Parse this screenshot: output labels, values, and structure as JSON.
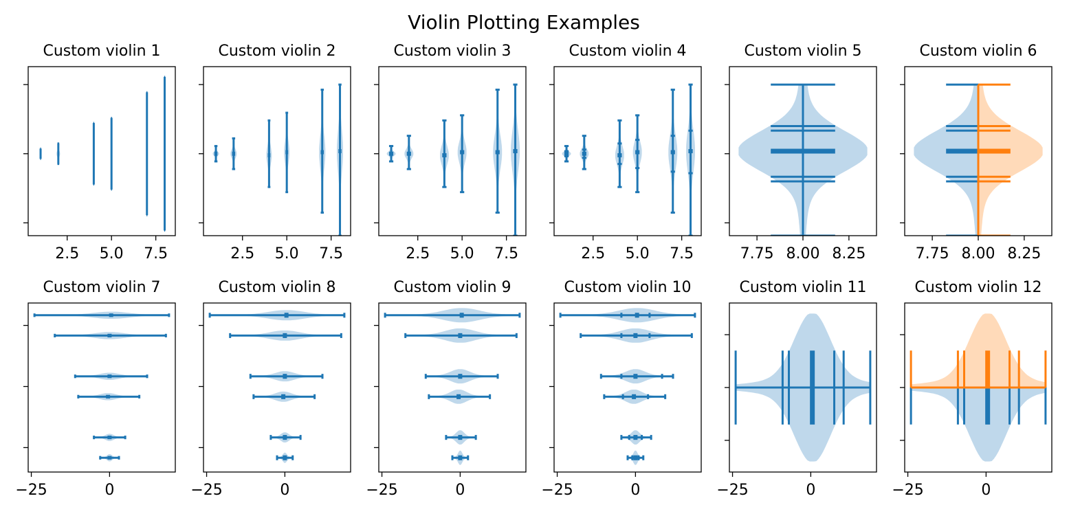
{
  "figure_title": "Violin Plotting Examples",
  "colors": {
    "blue": "#1f77b4",
    "blue_fill": "#bcd6ea",
    "orange": "#ff7f0e",
    "orange_fill": "#ffd8b5"
  },
  "chart_data": [
    {
      "title": "Custom violin 1",
      "type": "violin",
      "orientation": "vertical",
      "positions": [
        1,
        2,
        4,
        5,
        7,
        8
      ],
      "series": [
        {
          "min": -1,
          "max": 1,
          "median": 0,
          "mean": 0,
          "width": 0.1
        },
        {
          "min": -2,
          "max": 2,
          "median": 0,
          "mean": 0,
          "width": 0.2
        },
        {
          "min": -6,
          "max": 6,
          "median": 0,
          "mean": 0,
          "width": 0.1
        },
        {
          "min": -7,
          "max": 7,
          "median": 0,
          "mean": 0,
          "width": 0.1
        },
        {
          "min": -12,
          "max": 12,
          "median": 0,
          "mean": 0,
          "width": 0.1
        },
        {
          "min": -15,
          "max": 15,
          "median": 0,
          "mean": 0,
          "width": 0.1
        }
      ],
      "xlim": [
        0.3,
        8.6
      ],
      "ylim": [
        -16,
        17
      ],
      "xticks": [
        2.5,
        5.0,
        7.5
      ],
      "xticklabels": [
        "2.5",
        "5.0",
        "7.5"
      ],
      "yticks": [
        -13.5,
        0,
        13.5
      ],
      "show_extrema": true,
      "show_means": false,
      "show_medians": false
    },
    {
      "title": "Custom violin 2",
      "type": "violin",
      "orientation": "vertical",
      "positions": [
        1,
        2,
        4,
        5,
        7,
        8
      ],
      "series": [
        {
          "min": -1.5,
          "max": 1.5,
          "median": 0,
          "mean": 0,
          "width": 0.35
        },
        {
          "min": -3,
          "max": 3,
          "median": 0,
          "mean": 0,
          "width": 0.35
        },
        {
          "min": -6.5,
          "max": 6.5,
          "median": -0.3,
          "mean": -0.3,
          "width": 0.3
        },
        {
          "min": -7.5,
          "max": 8,
          "median": 0.3,
          "mean": 0.3,
          "width": 0.3
        },
        {
          "min": -11.5,
          "max": 12.5,
          "median": 0.3,
          "mean": 0.3,
          "width": 0.35
        },
        {
          "min": -16,
          "max": 13.5,
          "median": 0.5,
          "mean": 0.5,
          "width": 0.35
        }
      ],
      "xlim": [
        0.3,
        8.6
      ],
      "ylim": [
        -16,
        17
      ],
      "xticks": [
        2.5,
        5.0,
        7.5
      ],
      "xticklabels": [
        "2.5",
        "5.0",
        "7.5"
      ],
      "yticks": [
        -13.5,
        0,
        13.5
      ],
      "show_extrema": true,
      "show_means": true,
      "show_medians": false
    },
    {
      "title": "Custom violin 3",
      "type": "violin",
      "orientation": "vertical",
      "positions": [
        1,
        2,
        4,
        5,
        7,
        8
      ],
      "series": [
        {
          "min": -1.5,
          "max": 1.5,
          "median": 0,
          "mean": 0,
          "width": 0.5
        },
        {
          "min": -3,
          "max": 3.5,
          "median": 0,
          "mean": 0,
          "width": 0.5
        },
        {
          "min": -6.5,
          "max": 6.5,
          "median": -0.3,
          "mean": -0.3,
          "width": 0.5
        },
        {
          "min": -7.5,
          "max": 7.5,
          "median": 0.3,
          "mean": 0.3,
          "width": 0.5
        },
        {
          "min": -11.5,
          "max": 12.5,
          "median": 0.3,
          "mean": 0.3,
          "width": 0.5
        },
        {
          "min": -16,
          "max": 13.5,
          "median": 0.5,
          "mean": 0.5,
          "width": 0.5
        }
      ],
      "xlim": [
        0.3,
        8.6
      ],
      "ylim": [
        -16,
        17
      ],
      "xticks": [
        2.5,
        5.0,
        7.5
      ],
      "xticklabels": [
        "2.5",
        "5.0",
        "7.5"
      ],
      "yticks": [
        -13.5,
        0,
        13.5
      ],
      "show_extrema": true,
      "show_means": true,
      "show_medians": false
    },
    {
      "title": "Custom violin 4",
      "type": "violin",
      "orientation": "vertical",
      "positions": [
        1,
        2,
        4,
        5,
        7,
        8
      ],
      "series": [
        {
          "min": -1.5,
          "max": 1.5,
          "median": 0,
          "mean": 0,
          "q1": -0.5,
          "q3": 0.5,
          "width": 0.5
        },
        {
          "min": -3,
          "max": 3.5,
          "median": 0,
          "mean": 0,
          "q1": -0.8,
          "q3": 0.8,
          "width": 0.5
        },
        {
          "min": -6.5,
          "max": 6.5,
          "median": -0.3,
          "mean": -0.3,
          "q1": -2,
          "q3": 2,
          "width": 0.5
        },
        {
          "min": -7.5,
          "max": 7.5,
          "median": 0.3,
          "mean": 0.3,
          "q1": -2.8,
          "q3": 2.7,
          "width": 0.5
        },
        {
          "min": -11.5,
          "max": 12.5,
          "median": 0.3,
          "mean": 0.3,
          "q1": -3.5,
          "q3": 3.5,
          "width": 0.5
        },
        {
          "min": -16,
          "max": 13.5,
          "median": 0.5,
          "mean": 0.5,
          "q1": -3.8,
          "q3": 4.5,
          "width": 0.5
        }
      ],
      "xlim": [
        0.3,
        8.6
      ],
      "ylim": [
        -16,
        17
      ],
      "xticks": [
        2.5,
        5.0,
        7.5
      ],
      "xticklabels": [
        "2.5",
        "5.0",
        "7.5"
      ],
      "yticks": [
        -13.5,
        0,
        13.5
      ],
      "show_extrema": true,
      "show_means": true,
      "show_medians": false
    },
    {
      "title": "Custom violin 5",
      "type": "violin",
      "orientation": "vertical",
      "positions": [
        8
      ],
      "series": [
        {
          "min": -16,
          "max": 13.5,
          "mean": 0.5,
          "quantiles": [
            -5.4,
            -4.5,
            4.5,
            5.4
          ],
          "width": 0.7
        }
      ],
      "xlim": [
        7.6,
        8.4
      ],
      "ylim": [
        -16,
        17
      ],
      "xticks": [
        7.75,
        8.0,
        8.25
      ],
      "xticklabels": [
        "7.75",
        "8.00",
        "8.25"
      ],
      "yticks": [
        -13.5,
        0,
        13.5
      ],
      "show_extrema": true,
      "show_means": true,
      "show_medians": false
    },
    {
      "title": "Custom violin 6",
      "type": "violin",
      "orientation": "vertical",
      "split": true,
      "positions": [
        8
      ],
      "series": [
        {
          "name": "",
          "side": "low",
          "min": -16,
          "max": 13.5,
          "mean": 0.5,
          "quantiles": [
            -5.4,
            -4.5,
            4.5,
            5.4
          ],
          "width": 0.7
        },
        {
          "name": "",
          "side": "high",
          "min": -16,
          "max": 13.5,
          "mean": 0.5,
          "quantiles": [
            -5.4,
            -4.5,
            4.5,
            5.4
          ],
          "width": 0.7
        }
      ],
      "xlim": [
        7.6,
        8.4
      ],
      "ylim": [
        -16,
        17
      ],
      "xticks": [
        7.75,
        8.0,
        8.25
      ],
      "xticklabels": [
        "7.75",
        "8.00",
        "8.25"
      ],
      "yticks": [
        -13.5,
        0,
        13.5
      ],
      "show_extrema": true,
      "show_means": true,
      "show_medians": false
    },
    {
      "title": "Custom violin 7",
      "type": "violin",
      "orientation": "horizontal",
      "positions": [
        1,
        2,
        4,
        5,
        7,
        8
      ],
      "series": [
        {
          "min": -3,
          "max": 3,
          "median": 0,
          "mean": 0,
          "width": 0.35
        },
        {
          "min": -5,
          "max": 5,
          "median": 0,
          "mean": 0,
          "width": 0.35
        },
        {
          "min": -10,
          "max": 9.5,
          "median": -0.5,
          "mean": -0.5,
          "width": 0.35
        },
        {
          "min": -11,
          "max": 12,
          "median": 0,
          "mean": 0,
          "width": 0.35
        },
        {
          "min": -17.5,
          "max": 18,
          "median": 0,
          "mean": 0,
          "width": 0.35
        },
        {
          "min": -24,
          "max": 19,
          "median": 0.5,
          "mean": 0.5,
          "width": 0.35
        }
      ],
      "xlim": [
        -26,
        21
      ],
      "ylim": [
        0.3,
        8.6
      ],
      "xticks": [
        -25,
        0
      ],
      "xticklabels": [
        "−25",
        "0"
      ],
      "yticks": [
        1.5,
        4.5,
        7.5
      ],
      "show_extrema": true,
      "show_means": true,
      "show_medians": false
    },
    {
      "title": "Custom violin 8",
      "type": "violin",
      "orientation": "horizontal",
      "positions": [
        1,
        2,
        4,
        5,
        7,
        8
      ],
      "series": [
        {
          "min": -2.5,
          "max": 2.5,
          "median": 0,
          "mean": 0,
          "width": 0.5
        },
        {
          "min": -4.5,
          "max": 5,
          "median": 0,
          "mean": 0,
          "width": 0.5
        },
        {
          "min": -10,
          "max": 9.5,
          "median": -0.5,
          "mean": -0.5,
          "width": 0.5
        },
        {
          "min": -11,
          "max": 12,
          "median": 0,
          "mean": 0,
          "width": 0.5
        },
        {
          "min": -17.5,
          "max": 18,
          "median": 0,
          "mean": 0,
          "width": 0.5
        },
        {
          "min": -24,
          "max": 19,
          "median": 0.5,
          "mean": 0.5,
          "width": 0.5
        }
      ],
      "xlim": [
        -26,
        21
      ],
      "ylim": [
        0.3,
        8.6
      ],
      "xticks": [
        -25,
        0
      ],
      "xticklabels": [
        "−25",
        "0"
      ],
      "yticks": [
        1.5,
        4.5,
        7.5
      ],
      "show_extrema": true,
      "show_means": true,
      "show_medians": false
    },
    {
      "title": "Custom violin 9",
      "type": "violin",
      "orientation": "horizontal",
      "positions": [
        1,
        2,
        4,
        5,
        7,
        8
      ],
      "series": [
        {
          "min": -2.5,
          "max": 2.5,
          "median": 0,
          "mean": 0,
          "width": 0.7
        },
        {
          "min": -4.5,
          "max": 5,
          "median": 0,
          "mean": 0,
          "width": 0.7
        },
        {
          "min": -10,
          "max": 9.5,
          "median": -0.5,
          "mean": -0.5,
          "width": 0.7
        },
        {
          "min": -11,
          "max": 12,
          "median": 0,
          "mean": 0,
          "width": 0.7
        },
        {
          "min": -17.5,
          "max": 18,
          "median": 0,
          "mean": 0,
          "width": 0.7
        },
        {
          "min": -24,
          "max": 19,
          "median": 0.5,
          "mean": 0.5,
          "width": 0.7
        }
      ],
      "xlim": [
        -26,
        21
      ],
      "ylim": [
        0.3,
        8.6
      ],
      "xticks": [
        -25,
        0
      ],
      "xticklabels": [
        "−25",
        "0"
      ],
      "yticks": [
        1.5,
        4.5,
        7.5
      ],
      "show_extrema": true,
      "show_means": true,
      "show_medians": false
    },
    {
      "title": "Custom violin 10",
      "type": "violin",
      "orientation": "horizontal",
      "positions": [
        1,
        2,
        4,
        5,
        7,
        8
      ],
      "series": [
        {
          "min": -2.5,
          "max": 2.5,
          "median": 0,
          "mean": 0,
          "q1": -1,
          "q3": 1,
          "width": 0.7
        },
        {
          "min": -4.5,
          "max": 5,
          "median": 0,
          "mean": 0,
          "q1": -2,
          "q3": 2,
          "width": 0.7
        },
        {
          "min": -10,
          "max": 9.5,
          "median": -0.5,
          "mean": -0.5,
          "q1": -4,
          "q3": 4,
          "width": 0.7
        },
        {
          "min": -11,
          "max": 12,
          "median": 0,
          "mean": 0,
          "q1": -4.5,
          "q3": 8.5,
          "width": 0.7
        },
        {
          "min": -17.5,
          "max": 18,
          "median": 0,
          "mean": 0,
          "q1": -4.5,
          "q3": 4.5,
          "width": 0.7
        },
        {
          "min": -24,
          "max": 19,
          "median": 0.5,
          "mean": 0.5,
          "q1": -4.5,
          "q3": 4.5,
          "width": 0.7
        }
      ],
      "xlim": [
        -26,
        21
      ],
      "ylim": [
        0.3,
        8.6
      ],
      "xticks": [
        -25,
        0
      ],
      "xticklabels": [
        "−25",
        "0"
      ],
      "yticks": [
        1.5,
        4.5,
        7.5
      ],
      "show_extrema": true,
      "show_means": true,
      "show_medians": false
    },
    {
      "title": "Custom violin 11",
      "type": "violin",
      "orientation": "horizontal",
      "positions": [
        8
      ],
      "series": [
        {
          "min": -24,
          "max": 19,
          "mean": 0.5,
          "quantiles": [
            -9,
            -7,
            7.5,
            10.5
          ],
          "width": 0.7
        }
      ],
      "xlim": [
        -26,
        21
      ],
      "ylim": [
        7.6,
        8.4
      ],
      "xticks": [
        -25,
        0
      ],
      "xticklabels": [
        "−25",
        "0"
      ],
      "yticks": [
        7.75,
        8.0,
        8.25
      ],
      "show_extrema": true,
      "show_means": true,
      "show_medians": false
    },
    {
      "title": "Custom violin 12",
      "type": "violin",
      "orientation": "horizontal",
      "split": true,
      "positions": [
        8
      ],
      "series": [
        {
          "name": "",
          "side": "low",
          "min": -24,
          "max": 19,
          "mean": 0.5,
          "quantiles": [
            -9,
            -7,
            7.5,
            10.5
          ],
          "width": 0.7
        },
        {
          "name": "",
          "side": "high",
          "min": -24,
          "max": 19,
          "mean": 0.5,
          "quantiles": [
            -9,
            -7,
            7.5,
            10.5
          ],
          "width": 0.7
        }
      ],
      "xlim": [
        -26,
        21
      ],
      "ylim": [
        7.6,
        8.4
      ],
      "xticks": [
        -25,
        0
      ],
      "xticklabels": [
        "−25",
        "0"
      ],
      "yticks": [
        7.75,
        8.0,
        8.25
      ],
      "show_extrema": true,
      "show_means": true,
      "show_medians": false
    }
  ]
}
